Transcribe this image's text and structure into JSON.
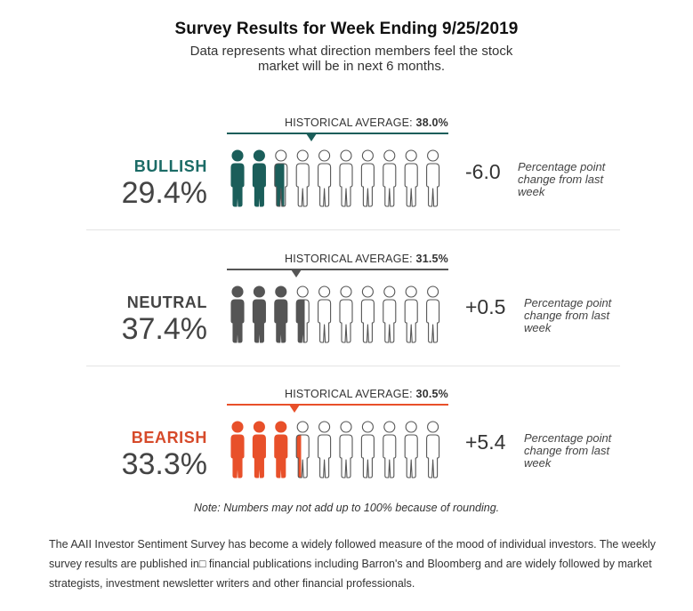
{
  "header": {
    "title": "Survey Results for Week Ending 9/25/2019",
    "subtitle": "Data represents what direction members feel the stock market will be in next 6 months."
  },
  "chart_data": {
    "type": "pictograph",
    "figures_total": 10,
    "categories": [
      {
        "name": "BULLISH",
        "value_label": "29.4%",
        "value": 29.4,
        "historical_label": "HISTORICAL AVERAGE:",
        "historical_value_label": "38.0%",
        "historical_value": 38.0,
        "change_label": "-6.0",
        "change": -6.0,
        "change_note": "Percentage point change from last week",
        "color": "#1b5e5a"
      },
      {
        "name": "NEUTRAL",
        "value_label": "37.4%",
        "value": 37.4,
        "historical_label": "HISTORICAL AVERAGE:",
        "historical_value_label": "31.5%",
        "historical_value": 31.5,
        "change_label": "+0.5",
        "change": 0.5,
        "change_note": "Percentage point change from last week",
        "color": "#555555"
      },
      {
        "name": "BEARISH",
        "value_label": "33.3%",
        "value": 33.3,
        "historical_label": "HISTORICAL AVERAGE:",
        "historical_value_label": "30.5%",
        "historical_value": 30.5,
        "change_label": "+5.4",
        "change": 5.4,
        "change_note": "Percentage point change from last week",
        "color": "#e8502a"
      }
    ]
  },
  "colors": {
    "bullish_text": "#1b6b66",
    "neutral_text": "#444444",
    "bearish_text": "#d64a2a"
  },
  "note": "Note: Numbers may not add up to 100% because of rounding.",
  "footer": "The AAII Investor Sentiment Survey has become a widely followed measure of the mood of individual investors. The weekly survey results are published in□ financial publications including Barron's and Bloomberg and are widely followed by market strategists, investment newsletter writers and other financial professionals."
}
